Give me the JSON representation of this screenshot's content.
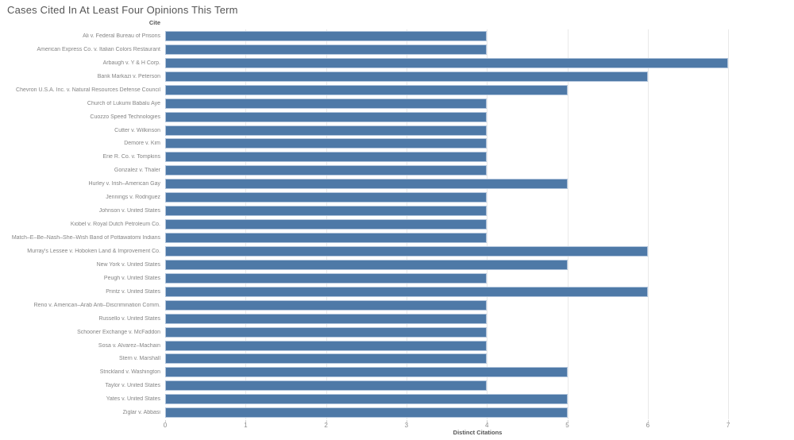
{
  "title": "Cases Cited In At Least Four Opinions This Term",
  "header": {
    "column_label": "Cite"
  },
  "axis": {
    "label": "Distinct Citations",
    "ticks": [
      0,
      1,
      2,
      3,
      4,
      5,
      6,
      7
    ]
  },
  "colors": {
    "bar": "#4e79a7",
    "bar_border": "#b3c6dd",
    "gridline": "#e9e9e9",
    "title_text": "#555555",
    "header_text": "#555555",
    "label_text": "#858585",
    "axis_text": "#8a8a8a",
    "background": "#ffffff"
  },
  "chart_data": {
    "type": "bar",
    "orientation": "horizontal",
    "title": "Cases Cited In At Least Four Opinions This Term",
    "xlabel": "Distinct Citations",
    "ylabel": "Cite",
    "xlim": [
      0,
      7.8
    ],
    "grid": "vertical",
    "legend": "none",
    "categories": [
      "Ali v. Federal Bureau of Prisons",
      "American Express Co. v. Italian Colors Restaurant",
      "Arbaugh v. Y & H Corp.",
      "Bank Markazi v. Peterson",
      "Chevron U.S.A. Inc. v. Natural Resources Defense Council",
      "Church of Lukumi Babalu Aye",
      "Cuozzo Speed Technologies",
      "Cutter v. Wilkinson",
      "Demore v. Kim",
      "Erie R. Co. v. Tompkins",
      "Gonzalez v. Thaler",
      "Hurley v. Irish–American Gay",
      "Jennings v. Rodriguez",
      "Johnson v. United States",
      "Kiobel v. Royal Dutch Petroleum Co.",
      "Match–E–Be–Nash–She–Wish Band of Pottawatomi Indians",
      "Murray's Lessee v. Hoboken Land & Improvement Co.",
      "New York v. United States",
      "Peugh v. United States",
      "Printz v. United States",
      "Reno v. American–Arab Anti–Discrimination Comm.",
      "Russello v. United States",
      "Schooner Exchange v. McFaddon",
      "Sosa v. Alvarez–Machain",
      "Stern v. Marshall",
      "Strickland v. Washington",
      "Taylor v. United States",
      "Yates v. United States",
      "Ziglar v. Abbasi"
    ],
    "values": [
      4,
      4,
      7,
      6,
      5,
      4,
      4,
      4,
      4,
      4,
      4,
      5,
      4,
      4,
      4,
      4,
      6,
      5,
      4,
      6,
      4,
      4,
      4,
      4,
      4,
      5,
      4,
      5,
      5
    ]
  }
}
